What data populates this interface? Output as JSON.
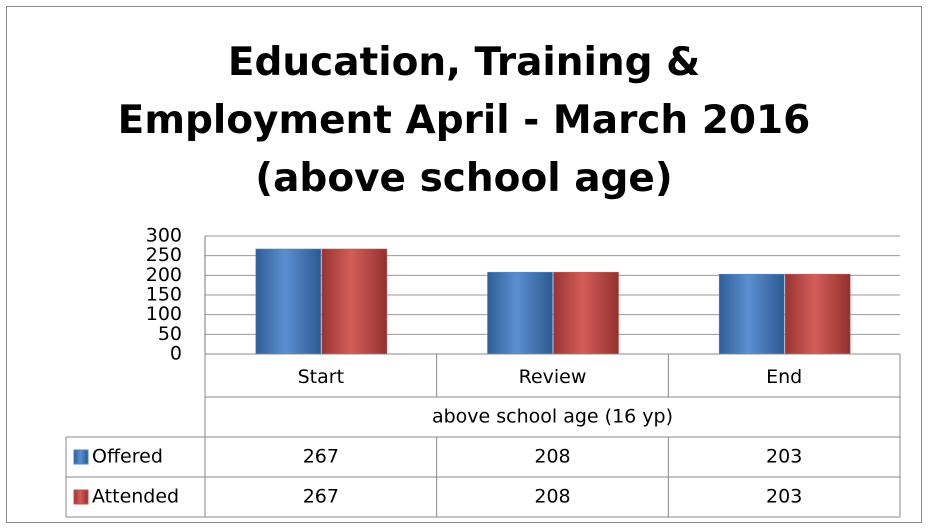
{
  "chart_data": {
    "type": "bar",
    "title": "Education, Training & Employment April - March 2016 (above school age)",
    "categories": [
      "Start",
      "Review",
      "End"
    ],
    "category_group": "above school age (16 yp)",
    "series": [
      {
        "name": "Offered",
        "color": "#4f81bd",
        "values": [
          267,
          208,
          203
        ]
      },
      {
        "name": "Attended",
        "color": "#c0504d",
        "values": [
          267,
          208,
          203
        ]
      }
    ],
    "ylim": [
      0,
      300
    ],
    "yticks": [
      0,
      50,
      100,
      150,
      200,
      250,
      300
    ],
    "grid": true
  }
}
